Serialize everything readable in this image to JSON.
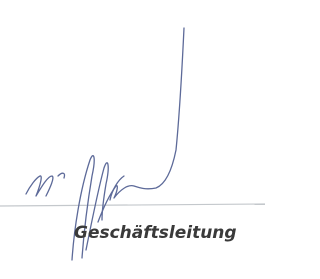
{
  "signature_block": {
    "caption": "Geschäftsleitung"
  }
}
